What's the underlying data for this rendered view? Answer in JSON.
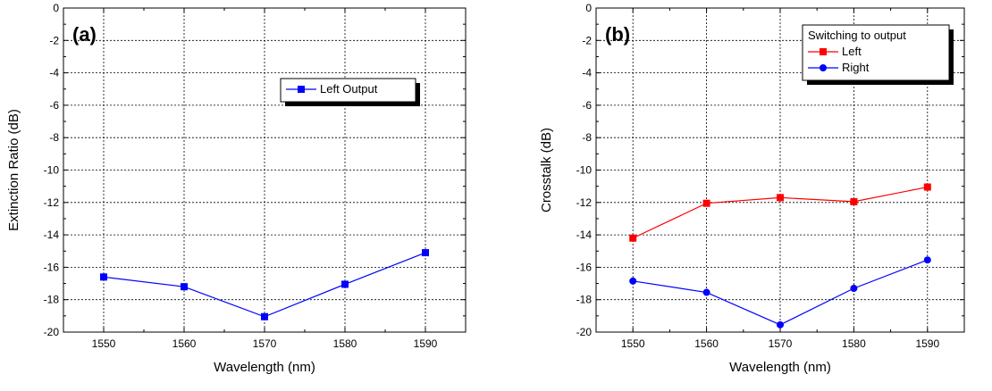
{
  "chart_data": [
    {
      "type": "line",
      "panel_label": "(a)",
      "xlabel": "Wavelength (nm)",
      "ylabel": "Extinction Ratio (dB)",
      "xlim": [
        1545,
        1595
      ],
      "ylim": [
        -20,
        0
      ],
      "x_ticks": [
        1550,
        1560,
        1570,
        1580,
        1590
      ],
      "y_ticks": [
        0,
        -2,
        -4,
        -6,
        -8,
        -10,
        -12,
        -14,
        -16,
        -18,
        -20
      ],
      "grid": true,
      "legend_title": "",
      "legend_position": "upper-right",
      "series": [
        {
          "name": "Left Output",
          "color": "#0000ff",
          "marker": "square",
          "x": [
            1550,
            1560,
            1570,
            1580,
            1590
          ],
          "y": [
            -16.6,
            -17.2,
            -19.05,
            -17.05,
            -15.1
          ]
        }
      ]
    },
    {
      "type": "line",
      "panel_label": "(b)",
      "xlabel": "Wavelength (nm)",
      "ylabel": "Crosstalk (dB)",
      "xlim": [
        1545,
        1595
      ],
      "ylim": [
        -20,
        0
      ],
      "x_ticks": [
        1550,
        1560,
        1570,
        1580,
        1590
      ],
      "y_ticks": [
        0,
        -2,
        -4,
        -6,
        -8,
        -10,
        -12,
        -14,
        -16,
        -18,
        -20
      ],
      "grid": true,
      "legend_title": "Switching to output",
      "legend_position": "upper-right",
      "series": [
        {
          "name": "Left",
          "color": "#ff0000",
          "marker": "square",
          "x": [
            1550,
            1560,
            1570,
            1580,
            1590
          ],
          "y": [
            -14.2,
            -12.05,
            -11.7,
            -11.95,
            -11.05
          ]
        },
        {
          "name": "Right",
          "color": "#0000ff",
          "marker": "circle",
          "x": [
            1550,
            1560,
            1570,
            1580,
            1590
          ],
          "y": [
            -16.85,
            -17.55,
            -19.55,
            -17.3,
            -15.55
          ]
        }
      ]
    }
  ]
}
